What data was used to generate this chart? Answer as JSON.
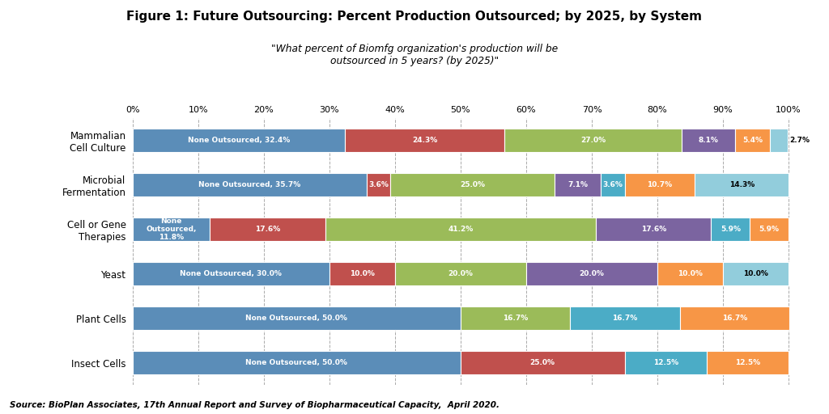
{
  "title": "Figure 1: Future Outsourcing: Percent Production Outsourced; by 2025, by System",
  "subtitle": "\"What percent of Biomfg organization's production will be\noutsourced in 5 years? (by 2025)\"",
  "source": "Source: BioPlan Associates, 17th Annual Report and Survey of Biopharmaceutical Capacity,  April 2020.",
  "categories": [
    "Mammalian\nCell Culture",
    "Microbial\nFermentation",
    "Cell or Gene\nTherapies",
    "Yeast",
    "Plant Cells",
    "Insect Cells"
  ],
  "rows": [
    {
      "name": "Mammalian\nCell Culture",
      "segments": [
        {
          "val": 32.4,
          "color": "#5B8DB8",
          "label": "None Outsourced, 32.4%",
          "label_color": "white"
        },
        {
          "val": 24.3,
          "color": "#C0504D",
          "label": "24.3%",
          "label_color": "white"
        },
        {
          "val": 27.0,
          "color": "#9BBB59",
          "label": "27.0%",
          "label_color": "white"
        },
        {
          "val": 8.1,
          "color": "#7B64A0",
          "label": "8.1%",
          "label_color": "white"
        },
        {
          "val": 5.4,
          "color": "#F79646",
          "label": "5.4%",
          "label_color": "white"
        },
        {
          "val": 2.7,
          "color": "#92CDDC",
          "label": "2.7%",
          "label_color": "black",
          "outside": true
        }
      ]
    },
    {
      "name": "Microbial\nFermentation",
      "segments": [
        {
          "val": 35.7,
          "color": "#5B8DB8",
          "label": "None Outsourced, 35.7%",
          "label_color": "white"
        },
        {
          "val": 3.6,
          "color": "#C0504D",
          "label": "3.6%",
          "label_color": "white"
        },
        {
          "val": 25.0,
          "color": "#9BBB59",
          "label": "25.0%",
          "label_color": "white"
        },
        {
          "val": 7.1,
          "color": "#7B64A0",
          "label": "7.1%",
          "label_color": "white"
        },
        {
          "val": 3.6,
          "color": "#4BACC6",
          "label": "3.6%",
          "label_color": "white"
        },
        {
          "val": 10.7,
          "color": "#F79646",
          "label": "10.7%",
          "label_color": "white"
        },
        {
          "val": 14.3,
          "color": "#92CDDC",
          "label": "14.3%",
          "label_color": "black"
        }
      ]
    },
    {
      "name": "Cell or Gene\nTherapies",
      "segments": [
        {
          "val": 11.8,
          "color": "#5B8DB8",
          "label": "None\nOutsourced,\n11.8%",
          "label_color": "white"
        },
        {
          "val": 17.6,
          "color": "#C0504D",
          "label": "17.6%",
          "label_color": "white"
        },
        {
          "val": 41.2,
          "color": "#9BBB59",
          "label": "41.2%",
          "label_color": "white"
        },
        {
          "val": 17.6,
          "color": "#7B64A0",
          "label": "17.6%",
          "label_color": "white"
        },
        {
          "val": 5.9,
          "color": "#4BACC6",
          "label": "5.9%",
          "label_color": "white"
        },
        {
          "val": 5.9,
          "color": "#F79646",
          "label": "5.9%",
          "label_color": "white"
        }
      ]
    },
    {
      "name": "Yeast",
      "segments": [
        {
          "val": 30.0,
          "color": "#5B8DB8",
          "label": "None Outsourced, 30.0%",
          "label_color": "white"
        },
        {
          "val": 10.0,
          "color": "#C0504D",
          "label": "10.0%",
          "label_color": "white"
        },
        {
          "val": 20.0,
          "color": "#9BBB59",
          "label": "20.0%",
          "label_color": "white"
        },
        {
          "val": 20.0,
          "color": "#7B64A0",
          "label": "20.0%",
          "label_color": "white"
        },
        {
          "val": 10.0,
          "color": "#F79646",
          "label": "10.0%",
          "label_color": "white"
        },
        {
          "val": 10.0,
          "color": "#92CDDC",
          "label": "10.0%",
          "label_color": "black"
        }
      ]
    },
    {
      "name": "Plant Cells",
      "segments": [
        {
          "val": 50.0,
          "color": "#5B8DB8",
          "label": "None Outsourced, 50.0%",
          "label_color": "white"
        },
        {
          "val": 16.7,
          "color": "#9BBB59",
          "label": "16.7%",
          "label_color": "white"
        },
        {
          "val": 16.7,
          "color": "#4BACC6",
          "label": "16.7%",
          "label_color": "white"
        },
        {
          "val": 16.7,
          "color": "#F79646",
          "label": "16.7%",
          "label_color": "white"
        }
      ]
    },
    {
      "name": "Insect Cells",
      "segments": [
        {
          "val": 50.0,
          "color": "#5B8DB8",
          "label": "None Outsourced, 50.0%",
          "label_color": "white"
        },
        {
          "val": 25.0,
          "color": "#C0504D",
          "label": "25.0%",
          "label_color": "white"
        },
        {
          "val": 12.5,
          "color": "#4BACC6",
          "label": "12.5%",
          "label_color": "white"
        },
        {
          "val": 12.5,
          "color": "#F79646",
          "label": "12.5%",
          "label_color": "white"
        }
      ]
    }
  ],
  "background_color": "#FFFFFF",
  "plot_bg_color": "#FFFFFF",
  "grid_color": "#AAAAAA",
  "xticks": [
    0,
    10,
    20,
    30,
    40,
    50,
    60,
    70,
    80,
    90,
    100
  ],
  "xtick_labels": [
    "0%",
    "10%",
    "20%",
    "30%",
    "40%",
    "50%",
    "60%",
    "70%",
    "80%",
    "90%",
    "100%"
  ]
}
